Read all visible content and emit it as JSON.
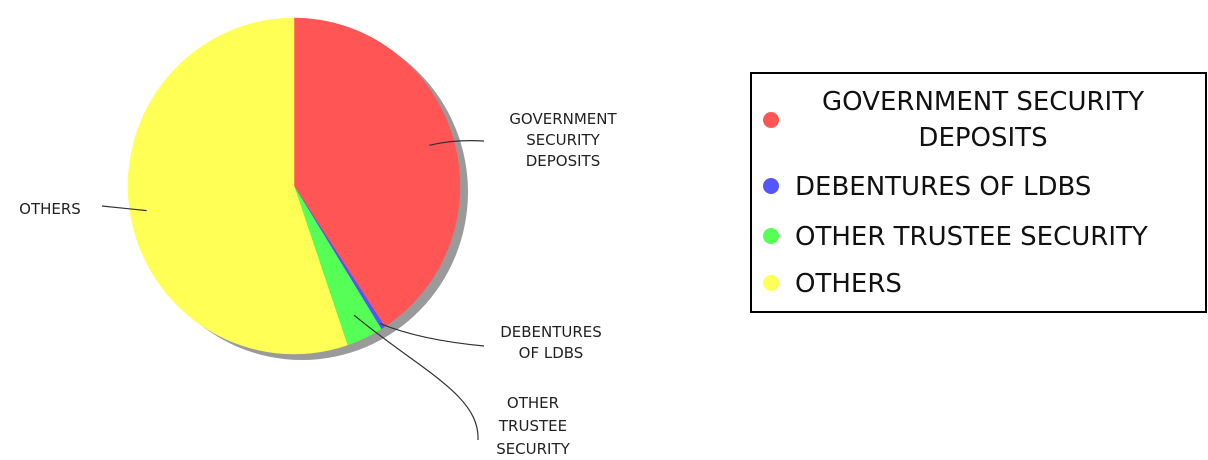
{
  "chart_data": {
    "type": "pie",
    "title": "",
    "slices": [
      {
        "name": "GOVERNMENT SECURITY DEPOSITS",
        "value": 40.8,
        "color": "#ff5555",
        "label_lines": [
          "GOVERNMENT",
          "SECURITY",
          "DEPOSITS"
        ]
      },
      {
        "name": "DEBENTURES OF LDBS",
        "value": 0.4,
        "color": "#5555ff",
        "label_lines": [
          "DEBENTURES",
          "OF LDBS"
        ]
      },
      {
        "name": "OTHER TRUSTEE SECURITY",
        "value": 3.6,
        "color": "#55ff55",
        "label_lines": [
          "OTHER",
          "TRUSTEE",
          "SECURITY"
        ]
      },
      {
        "name": "OTHERS",
        "value": 55.2,
        "color": "#ffff55",
        "label_lines": [
          "OTHERS"
        ]
      }
    ],
    "legend": {
      "placement": "right",
      "items": [
        {
          "lines": [
            "GOVERNMENT SECURITY",
            "DEPOSITS"
          ],
          "color": "#ff5555"
        },
        {
          "lines": [
            "DEBENTURES OF LDBS"
          ],
          "color": "#5555ff"
        },
        {
          "lines": [
            "OTHER TRUSTEE SECURITY"
          ],
          "color": "#55ff55"
        },
        {
          "lines": [
            "OTHERS"
          ],
          "color": "#ffff55"
        }
      ]
    }
  }
}
